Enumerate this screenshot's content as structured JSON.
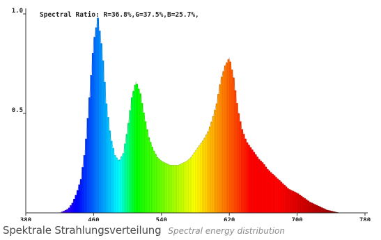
{
  "chart_data": {
    "type": "area",
    "annotation": "Spectral Ratio:  R=36.8%,G=37.5%,B=25.7%,",
    "xlim": [
      380,
      780
    ],
    "ylim": [
      0,
      1.0
    ],
    "x_ticks": [
      380,
      460,
      540,
      620,
      700,
      780
    ],
    "y_ticks": [
      0.5,
      1.0
    ],
    "y_tick_labels": [
      "0.5",
      "1.0"
    ],
    "color_encoding": "wavelength",
    "grid": false,
    "x": [
      420,
      425,
      430,
      435,
      440,
      445,
      450,
      455,
      460,
      465,
      470,
      475,
      480,
      485,
      490,
      495,
      500,
      505,
      510,
      515,
      520,
      525,
      530,
      535,
      540,
      545,
      550,
      555,
      560,
      565,
      570,
      575,
      580,
      585,
      590,
      595,
      600,
      605,
      610,
      615,
      620,
      625,
      630,
      635,
      640,
      645,
      650,
      655,
      660,
      665,
      670,
      675,
      680,
      685,
      690,
      695,
      700,
      705,
      710,
      715,
      720,
      725,
      730,
      735,
      740,
      745,
      750,
      755,
      760
    ],
    "values": [
      0.0,
      0.01,
      0.02,
      0.05,
      0.1,
      0.17,
      0.32,
      0.58,
      0.86,
      0.98,
      0.82,
      0.55,
      0.38,
      0.29,
      0.26,
      0.3,
      0.42,
      0.58,
      0.66,
      0.6,
      0.48,
      0.38,
      0.32,
      0.28,
      0.26,
      0.25,
      0.24,
      0.24,
      0.24,
      0.25,
      0.26,
      0.28,
      0.31,
      0.34,
      0.37,
      0.41,
      0.47,
      0.55,
      0.67,
      0.74,
      0.78,
      0.68,
      0.52,
      0.42,
      0.36,
      0.33,
      0.3,
      0.27,
      0.25,
      0.22,
      0.2,
      0.18,
      0.16,
      0.14,
      0.12,
      0.11,
      0.1,
      0.085,
      0.07,
      0.055,
      0.045,
      0.035,
      0.025,
      0.015,
      0.01,
      0.005,
      0.0,
      0.0,
      0.0
    ]
  },
  "caption": {
    "title_de": "Spektrale Strahlungsverteilung",
    "title_en": "Spectral energy distribution"
  }
}
